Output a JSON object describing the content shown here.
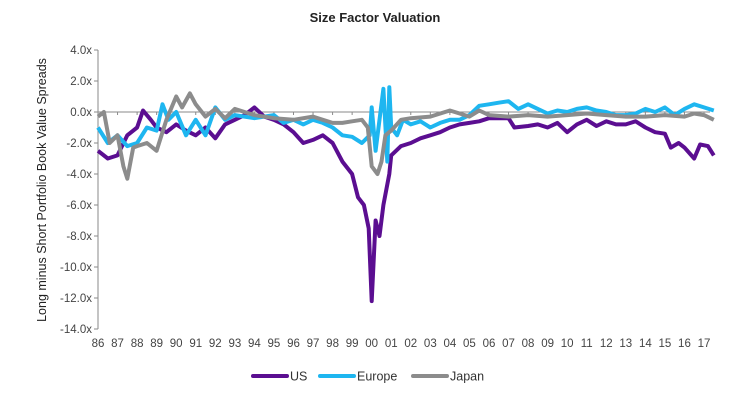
{
  "chart_data": {
    "type": "line",
    "title": "Size Factor Valuation",
    "xlabel": "",
    "ylabel": "Long minus Short Portfolio Book Value Spreads",
    "ylim": [
      -14,
      4
    ],
    "xlim": [
      1986,
      2017
    ],
    "yticks": [
      "4.0x",
      "2.0x",
      "0.0x",
      "-2.0x",
      "-4.0x",
      "-6.0x",
      "-8.0x",
      "-10.0x",
      "-12.0x",
      "-14.0x"
    ],
    "ytick_values": [
      4,
      2,
      0,
      -2,
      -4,
      -6,
      -8,
      -10,
      -12,
      -14
    ],
    "xticks": [
      "86",
      "87",
      "88",
      "89",
      "90",
      "91",
      "92",
      "93",
      "94",
      "95",
      "96",
      "97",
      "98",
      "99",
      "00",
      "01",
      "02",
      "03",
      "04",
      "05",
      "06",
      "07",
      "08",
      "09",
      "10",
      "11",
      "12",
      "13",
      "14",
      "15",
      "16",
      "17"
    ],
    "grid": false,
    "zero_line": true,
    "legend_position": "bottom",
    "series": [
      {
        "name": "US",
        "color": "#5B0E91",
        "x": [
          1986.0,
          1986.5,
          1987.0,
          1987.5,
          1988.0,
          1988.3,
          1988.7,
          1989.0,
          1989.5,
          1990.0,
          1990.5,
          1991.0,
          1991.5,
          1992.0,
          1992.5,
          1993.0,
          1993.5,
          1994.0,
          1994.5,
          1995.0,
          1995.5,
          1996.0,
          1996.5,
          1997.0,
          1997.5,
          1998.0,
          1998.5,
          1999.0,
          1999.3,
          1999.6,
          1999.85,
          2000.0,
          2000.2,
          2000.4,
          2000.6,
          2000.9,
          2001.0,
          2001.5,
          2002.0,
          2002.5,
          2003.0,
          2003.5,
          2004.0,
          2004.5,
          2005.0,
          2005.5,
          2006.0,
          2006.5,
          2007.0,
          2007.3,
          2008.0,
          2008.5,
          2009.0,
          2009.5,
          2010.0,
          2010.5,
          2011.0,
          2011.5,
          2012.0,
          2012.5,
          2013.0,
          2013.5,
          2014.0,
          2014.5,
          2015.0,
          2015.3,
          2015.7,
          2016.0,
          2016.5,
          2016.8,
          2017.2,
          2017.5
        ],
        "y": [
          -2.5,
          -3.0,
          -2.8,
          -1.5,
          -1.0,
          0.1,
          -0.5,
          -1.0,
          -1.3,
          -0.8,
          -1.2,
          -1.5,
          -1.0,
          -1.7,
          -0.8,
          -0.5,
          -0.2,
          0.3,
          -0.3,
          -0.5,
          -0.8,
          -1.3,
          -2.0,
          -1.8,
          -1.5,
          -2.0,
          -3.2,
          -4.0,
          -5.5,
          -6.0,
          -7.5,
          -12.2,
          -7.0,
          -8.0,
          -6.0,
          -4.0,
          -2.8,
          -2.2,
          -2.0,
          -1.7,
          -1.5,
          -1.3,
          -1.0,
          -0.8,
          -0.7,
          -0.6,
          -0.4,
          -0.4,
          -0.4,
          -1.0,
          -0.9,
          -0.8,
          -1.0,
          -0.7,
          -1.3,
          -0.8,
          -0.5,
          -0.9,
          -0.6,
          -0.8,
          -0.8,
          -0.6,
          -1.0,
          -1.3,
          -1.4,
          -2.3,
          -2.0,
          -2.3,
          -3.0,
          -2.1,
          -2.2,
          -2.8
        ]
      },
      {
        "name": "Europe",
        "color": "#1EB6F0",
        "x": [
          1986.0,
          1986.5,
          1987.0,
          1987.5,
          1988.0,
          1988.5,
          1989.0,
          1989.3,
          1989.6,
          1990.0,
          1990.5,
          1991.0,
          1991.5,
          1992.0,
          1992.5,
          1993.0,
          1994.0,
          1995.0,
          1995.5,
          1996.0,
          1996.5,
          1997.0,
          1997.5,
          1998.0,
          1998.5,
          1999.0,
          1999.5,
          1999.9,
          2000.0,
          2000.2,
          2000.4,
          2000.6,
          2000.8,
          2000.9,
          2001.0,
          2001.3,
          2001.6,
          2002.0,
          2002.5,
          2003.0,
          2003.5,
          2004.0,
          2004.5,
          2005.0,
          2005.5,
          2006.0,
          2006.5,
          2007.0,
          2007.5,
          2008.0,
          2008.5,
          2009.0,
          2009.5,
          2010.0,
          2010.5,
          2011.0,
          2011.5,
          2012.0,
          2012.5,
          2013.0,
          2013.5,
          2014.0,
          2014.5,
          2015.0,
          2015.5,
          2016.0,
          2016.5,
          2017.0,
          2017.5
        ],
        "y": [
          -1.0,
          -2.0,
          -1.5,
          -2.2,
          -2.0,
          -1.0,
          -1.2,
          0.5,
          -0.5,
          0.0,
          -1.5,
          -0.5,
          -1.5,
          0.3,
          -0.5,
          -0.2,
          -0.4,
          -0.2,
          -0.7,
          -0.5,
          -0.8,
          -0.5,
          -0.7,
          -1.0,
          -1.5,
          -1.6,
          -2.0,
          -1.5,
          0.3,
          -2.5,
          -0.5,
          1.5,
          -3.2,
          1.6,
          -1.0,
          -1.5,
          -0.5,
          -0.8,
          -0.6,
          -1.0,
          -0.7,
          -0.5,
          -0.5,
          -0.2,
          0.4,
          0.5,
          0.6,
          0.7,
          0.2,
          0.5,
          0.2,
          -0.1,
          0.1,
          0.0,
          0.2,
          0.3,
          0.1,
          0.0,
          -0.2,
          -0.2,
          -0.1,
          0.2,
          0.0,
          0.3,
          -0.2,
          0.2,
          0.5,
          0.3,
          0.1
        ]
      },
      {
        "name": "Japan",
        "color": "#8C8C8C",
        "x": [
          1986.0,
          1986.3,
          1986.6,
          1987.0,
          1987.3,
          1987.5,
          1987.8,
          1988.0,
          1988.5,
          1989.0,
          1989.5,
          1990.0,
          1990.3,
          1990.7,
          1991.0,
          1991.5,
          1992.0,
          1992.5,
          1993.0,
          1994.0,
          1995.0,
          1996.0,
          1997.0,
          1997.5,
          1998.0,
          1998.5,
          1999.0,
          1999.5,
          1999.8,
          2000.0,
          2000.3,
          2000.5,
          2000.7,
          2001.0,
          2001.5,
          2002.0,
          2003.0,
          2004.0,
          2004.5,
          2005.0,
          2005.5,
          2006.0,
          2007.0,
          2008.0,
          2009.0,
          2010.0,
          2011.0,
          2012.0,
          2013.0,
          2014.0,
          2015.0,
          2016.0,
          2016.5,
          2017.0,
          2017.5
        ],
        "y": [
          -0.3,
          0.0,
          -2.0,
          -1.5,
          -3.5,
          -4.3,
          -2.3,
          -2.2,
          -2.0,
          -2.5,
          -0.5,
          1.0,
          0.3,
          1.2,
          0.5,
          -0.3,
          0.2,
          -0.4,
          0.2,
          -0.2,
          -0.4,
          -0.5,
          -0.3,
          -0.5,
          -0.7,
          -0.7,
          -0.6,
          -0.5,
          -1.0,
          -3.5,
          -4.0,
          -3.2,
          -1.5,
          -1.2,
          -0.5,
          -0.4,
          -0.3,
          0.1,
          -0.1,
          -0.3,
          0.1,
          -0.2,
          -0.3,
          -0.2,
          -0.3,
          -0.2,
          -0.1,
          -0.2,
          -0.3,
          -0.3,
          -0.2,
          -0.3,
          -0.1,
          -0.2,
          -0.5
        ]
      }
    ]
  }
}
